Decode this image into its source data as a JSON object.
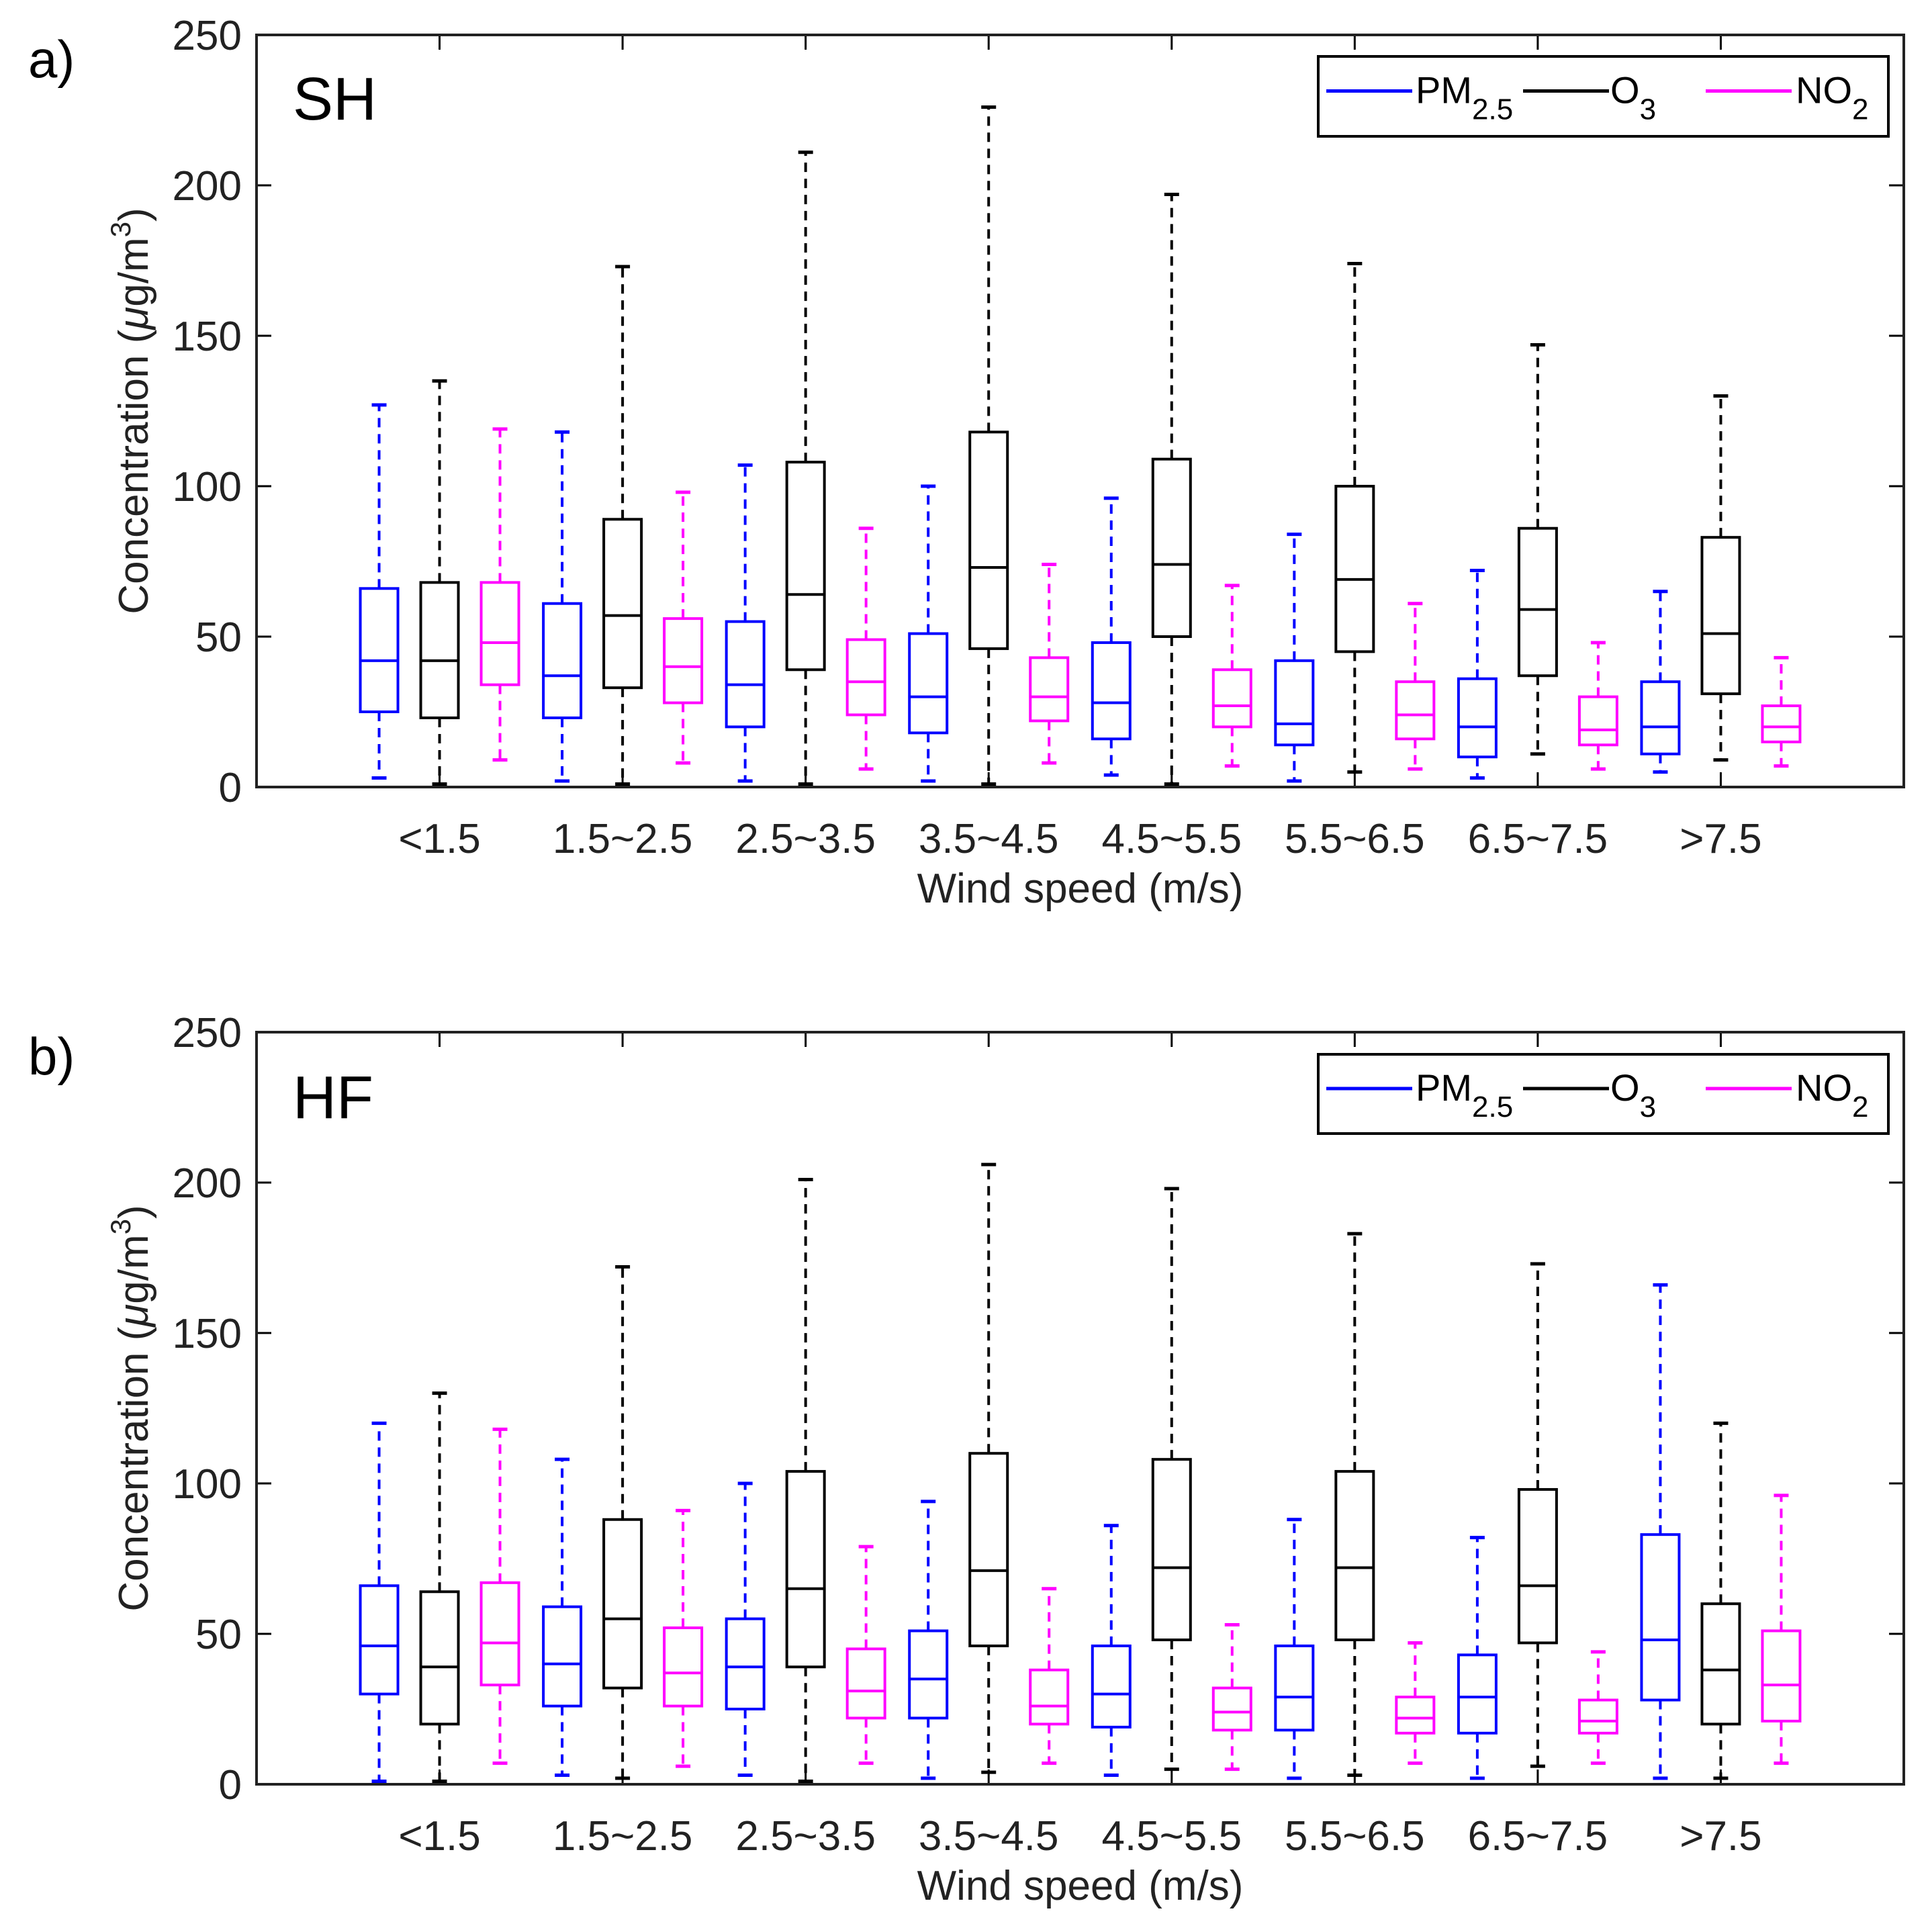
{
  "chart_data": [
    {
      "type": "box",
      "panel_label": "a)",
      "site_label": "SH",
      "xlabel": "Wind speed (m/s)",
      "ylabel": "Concentration (μg/m3)",
      "ylabel_parts": {
        "main": "Concentration (",
        "mu": "μ",
        "unit": "g/m",
        "sup": "3",
        "close": ")"
      },
      "ylim": [
        0,
        250
      ],
      "yticks": [
        "0",
        "50",
        "100",
        "150",
        "200",
        "250"
      ],
      "categories": [
        "<1.5",
        "1.5~2.5",
        "2.5~3.5",
        "3.5~4.5",
        "4.5~5.5",
        "5.5~6.5",
        "6.5~7.5",
        ">7.5"
      ],
      "legend": [
        {
          "name": "PM",
          "sub": "2.5",
          "color": "#0000ff"
        },
        {
          "name": "O",
          "sub": "3",
          "color": "#000000"
        },
        {
          "name": "NO",
          "sub": "2",
          "color": "#ff00ff"
        }
      ],
      "series": [
        {
          "name": "PM2.5",
          "color": "#0000ff",
          "boxes": [
            {
              "min": 3,
              "q1": 25,
              "median": 42,
              "q3": 66,
              "max": 127
            },
            {
              "min": 2,
              "q1": 23,
              "median": 37,
              "q3": 61,
              "max": 118
            },
            {
              "min": 2,
              "q1": 20,
              "median": 34,
              "q3": 55,
              "max": 107
            },
            {
              "min": 2,
              "q1": 18,
              "median": 30,
              "q3": 51,
              "max": 100
            },
            {
              "min": 4,
              "q1": 16,
              "median": 28,
              "q3": 48,
              "max": 96
            },
            {
              "min": 2,
              "q1": 14,
              "median": 21,
              "q3": 42,
              "max": 84
            },
            {
              "min": 3,
              "q1": 10,
              "median": 20,
              "q3": 36,
              "max": 72
            },
            {
              "min": 5,
              "q1": 11,
              "median": 20,
              "q3": 35,
              "max": 65
            }
          ]
        },
        {
          "name": "O3",
          "color": "#000000",
          "boxes": [
            {
              "min": 1,
              "q1": 23,
              "median": 42,
              "q3": 68,
              "max": 135
            },
            {
              "min": 1,
              "q1": 33,
              "median": 57,
              "q3": 89,
              "max": 173
            },
            {
              "min": 1,
              "q1": 39,
              "median": 64,
              "q3": 108,
              "max": 211
            },
            {
              "min": 1,
              "q1": 46,
              "median": 73,
              "q3": 118,
              "max": 226
            },
            {
              "min": 1,
              "q1": 50,
              "median": 74,
              "q3": 109,
              "max": 197
            },
            {
              "min": 5,
              "q1": 45,
              "median": 69,
              "q3": 100,
              "max": 174
            },
            {
              "min": 11,
              "q1": 37,
              "median": 59,
              "q3": 86,
              "max": 147
            },
            {
              "min": 9,
              "q1": 31,
              "median": 51,
              "q3": 83,
              "max": 130
            }
          ]
        },
        {
          "name": "NO2",
          "color": "#ff00ff",
          "boxes": [
            {
              "min": 9,
              "q1": 34,
              "median": 48,
              "q3": 68,
              "max": 119
            },
            {
              "min": 8,
              "q1": 28,
              "median": 40,
              "q3": 56,
              "max": 98
            },
            {
              "min": 6,
              "q1": 24,
              "median": 35,
              "q3": 49,
              "max": 86
            },
            {
              "min": 8,
              "q1": 22,
              "median": 30,
              "q3": 43,
              "max": 74
            },
            {
              "min": 7,
              "q1": 20,
              "median": 27,
              "q3": 39,
              "max": 67
            },
            {
              "min": 6,
              "q1": 16,
              "median": 24,
              "q3": 35,
              "max": 61
            },
            {
              "min": 6,
              "q1": 14,
              "median": 19,
              "q3": 30,
              "max": 48
            },
            {
              "min": 7,
              "q1": 15,
              "median": 20,
              "q3": 27,
              "max": 43
            }
          ]
        }
      ]
    },
    {
      "type": "box",
      "panel_label": "b)",
      "site_label": "HF",
      "xlabel": "Wind speed (m/s)",
      "ylabel": "Concentration (μg/m3)",
      "ylabel_parts": {
        "main": "Concentration (",
        "mu": "μ",
        "unit": "g/m",
        "sup": "3",
        "close": ")"
      },
      "ylim": [
        0,
        250
      ],
      "yticks": [
        "0",
        "50",
        "100",
        "150",
        "200",
        "250"
      ],
      "categories": [
        "<1.5",
        "1.5~2.5",
        "2.5~3.5",
        "3.5~4.5",
        "4.5~5.5",
        "5.5~6.5",
        "6.5~7.5",
        ">7.5"
      ],
      "legend": [
        {
          "name": "PM",
          "sub": "2.5",
          "color": "#0000ff"
        },
        {
          "name": "O",
          "sub": "3",
          "color": "#000000"
        },
        {
          "name": "NO",
          "sub": "2",
          "color": "#ff00ff"
        }
      ],
      "series": [
        {
          "name": "PM2.5",
          "color": "#0000ff",
          "boxes": [
            {
              "min": 1,
              "q1": 30,
              "median": 46,
              "q3": 66,
              "max": 120
            },
            {
              "min": 3,
              "q1": 26,
              "median": 40,
              "q3": 59,
              "max": 108
            },
            {
              "min": 3,
              "q1": 25,
              "median": 39,
              "q3": 55,
              "max": 100
            },
            {
              "min": 2,
              "q1": 22,
              "median": 35,
              "q3": 51,
              "max": 94
            },
            {
              "min": 3,
              "q1": 19,
              "median": 30,
              "q3": 46,
              "max": 86
            },
            {
              "min": 2,
              "q1": 18,
              "median": 29,
              "q3": 46,
              "max": 88
            },
            {
              "min": 2,
              "q1": 17,
              "median": 29,
              "q3": 43,
              "max": 82
            },
            {
              "min": 2,
              "q1": 28,
              "median": 48,
              "q3": 83,
              "max": 166
            }
          ]
        },
        {
          "name": "O3",
          "color": "#000000",
          "boxes": [
            {
              "min": 1,
              "q1": 20,
              "median": 39,
              "q3": 64,
              "max": 130
            },
            {
              "min": 2,
              "q1": 32,
              "median": 55,
              "q3": 88,
              "max": 172
            },
            {
              "min": 1,
              "q1": 39,
              "median": 65,
              "q3": 104,
              "max": 201
            },
            {
              "min": 4,
              "q1": 46,
              "median": 71,
              "q3": 110,
              "max": 206
            },
            {
              "min": 5,
              "q1": 48,
              "median": 72,
              "q3": 108,
              "max": 198
            },
            {
              "min": 3,
              "q1": 48,
              "median": 72,
              "q3": 104,
              "max": 183
            },
            {
              "min": 6,
              "q1": 47,
              "median": 66,
              "q3": 98,
              "max": 173
            },
            {
              "min": 2,
              "q1": 20,
              "median": 38,
              "q3": 60,
              "max": 120
            }
          ]
        },
        {
          "name": "NO2",
          "color": "#ff00ff",
          "boxes": [
            {
              "min": 7,
              "q1": 33,
              "median": 47,
              "q3": 67,
              "max": 118
            },
            {
              "min": 6,
              "q1": 26,
              "median": 37,
              "q3": 52,
              "max": 91
            },
            {
              "min": 7,
              "q1": 22,
              "median": 31,
              "q3": 45,
              "max": 79
            },
            {
              "min": 7,
              "q1": 20,
              "median": 26,
              "q3": 38,
              "max": 65
            },
            {
              "min": 5,
              "q1": 18,
              "median": 24,
              "q3": 32,
              "max": 53
            },
            {
              "min": 7,
              "q1": 17,
              "median": 22,
              "q3": 29,
              "max": 47
            },
            {
              "min": 7,
              "q1": 17,
              "median": 21,
              "q3": 28,
              "max": 44
            },
            {
              "min": 7,
              "q1": 21,
              "median": 33,
              "q3": 51,
              "max": 96
            }
          ]
        }
      ]
    }
  ]
}
